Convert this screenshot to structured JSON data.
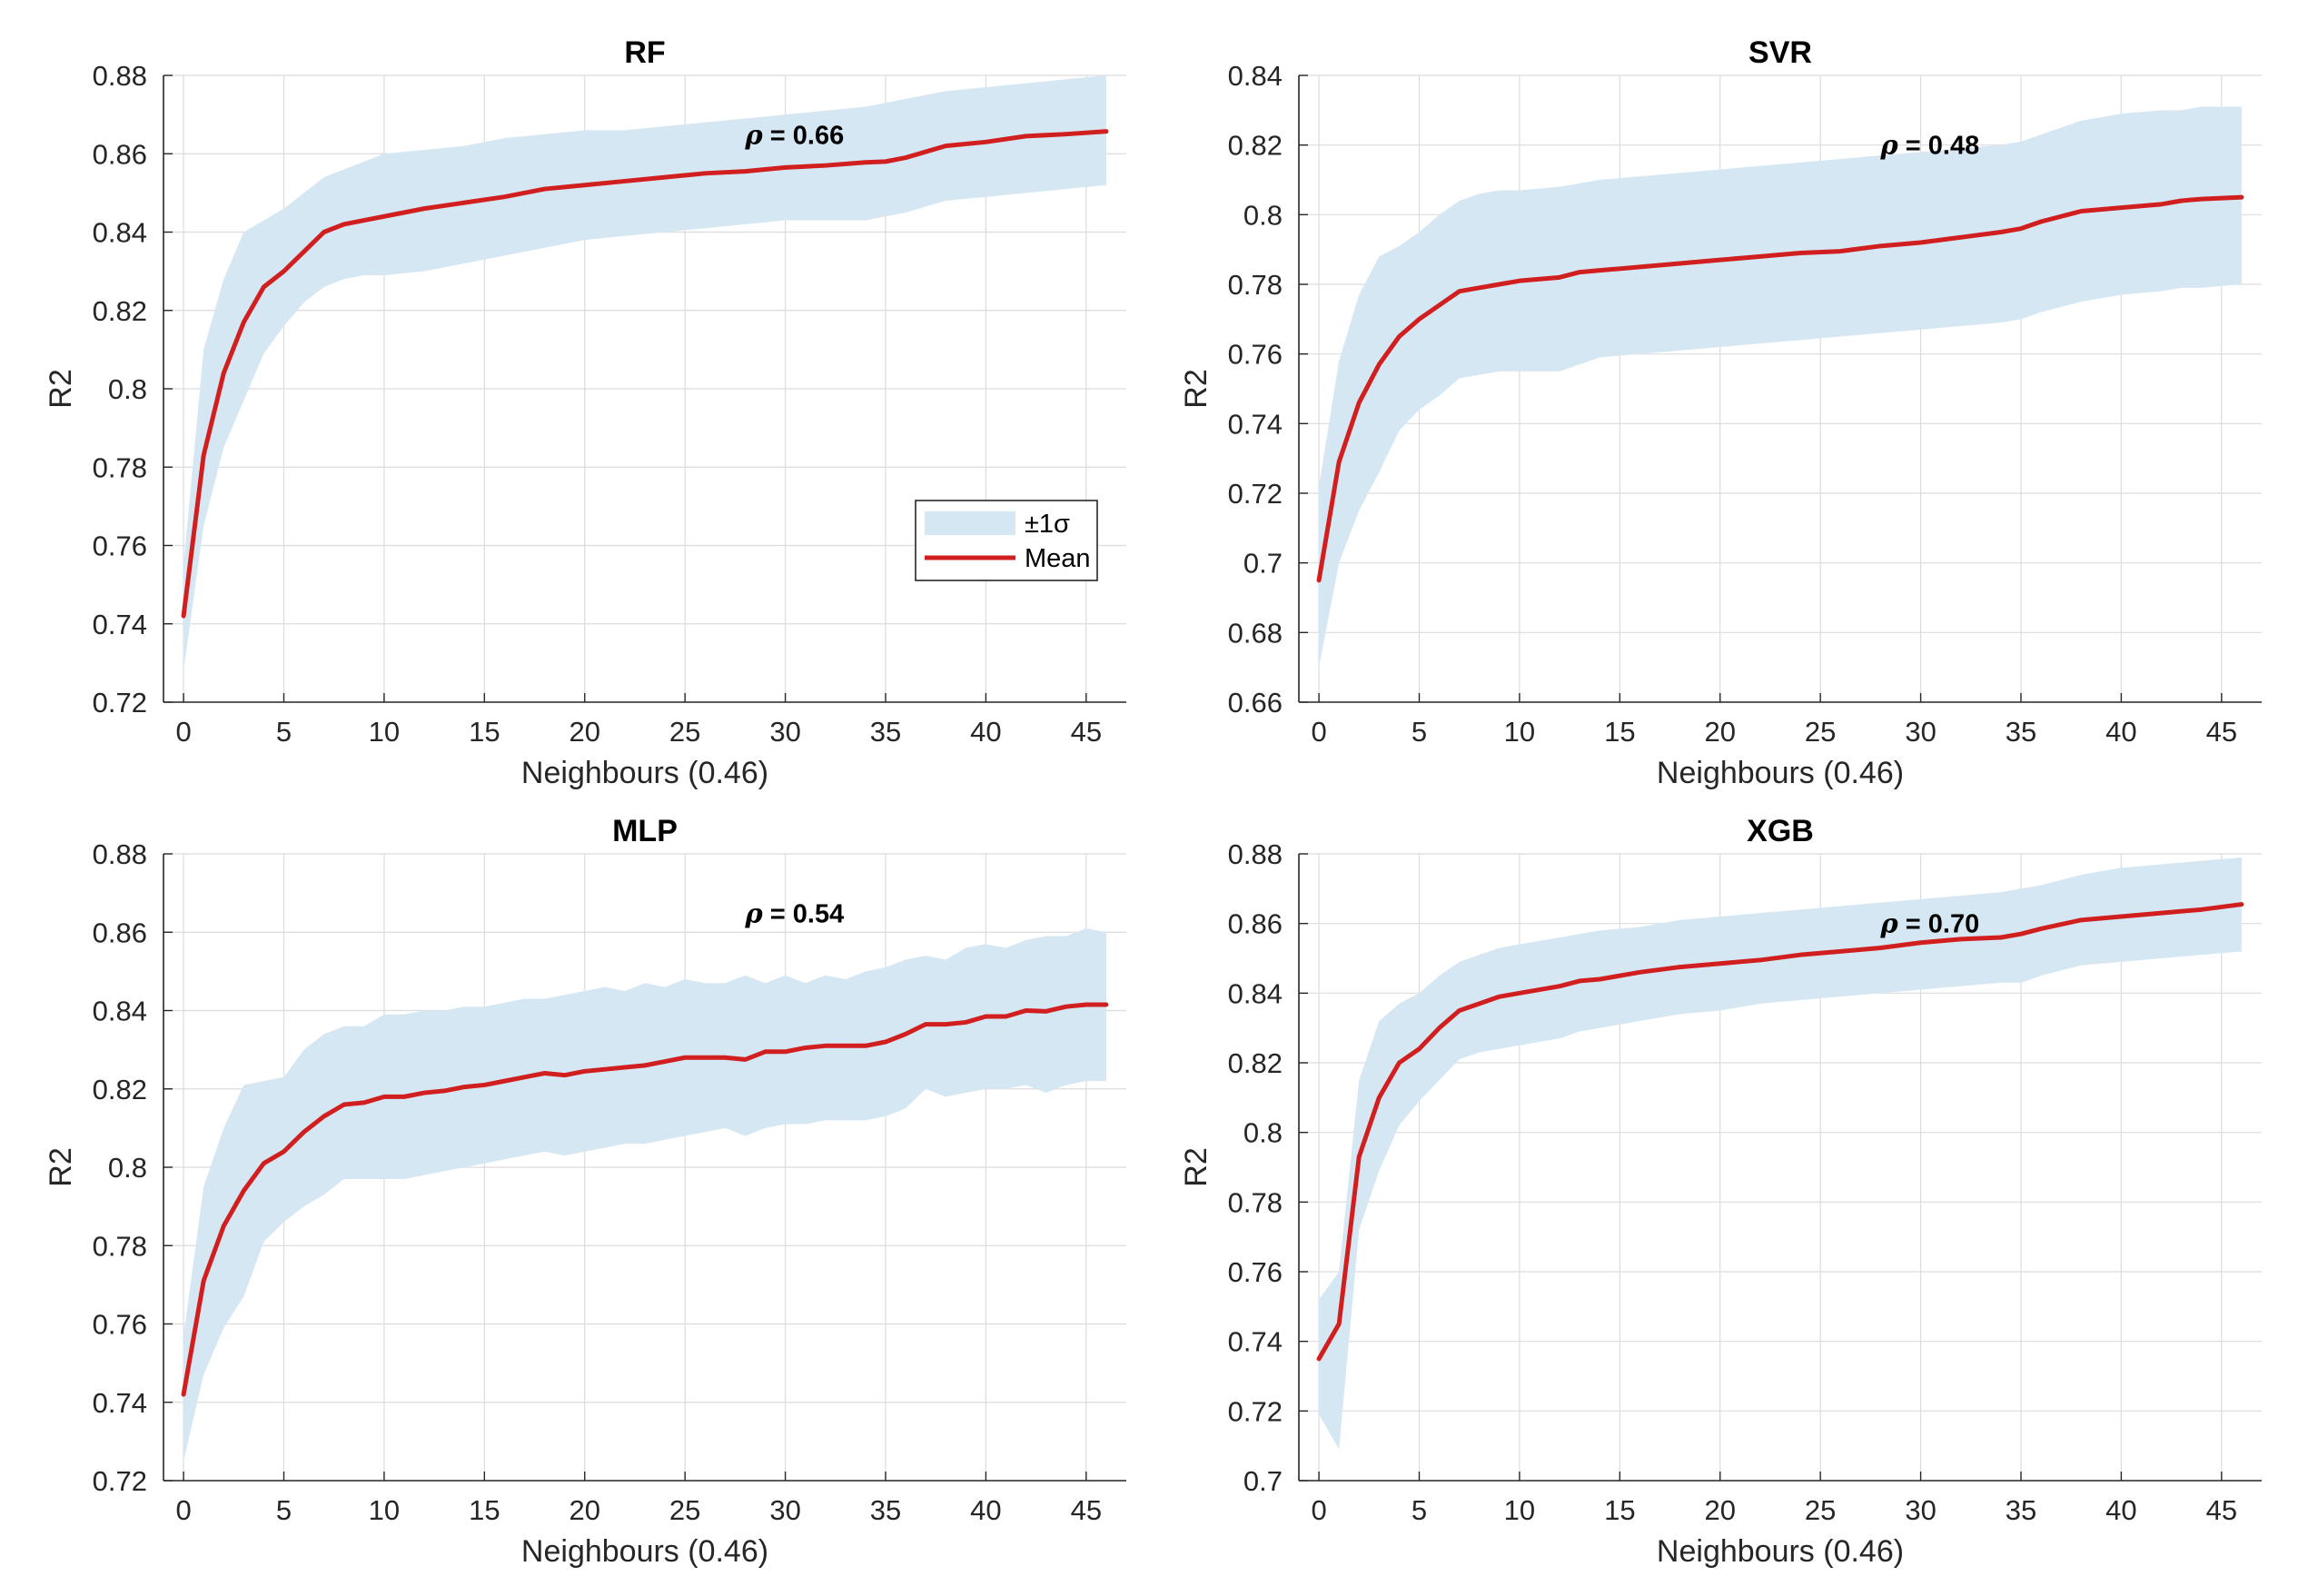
{
  "colors": {
    "band": "#d6e7f4",
    "mean": "#d11f1f",
    "axis": "#262626",
    "grid": "#dcdcdc"
  },
  "legend": {
    "band_label": "±1σ",
    "mean_label": "Mean",
    "location": "lower-right of RF panel"
  },
  "chart_data": [
    {
      "id": "rf",
      "type": "line",
      "title": "RF",
      "xlabel": "Neighbours (0.46)",
      "ylabel": "R2",
      "xlim": [
        -1,
        47
      ],
      "ylim": [
        0.72,
        0.88
      ],
      "xticks": [
        0,
        5,
        10,
        15,
        20,
        25,
        30,
        35,
        40,
        45
      ],
      "xtick_labels": [
        "0",
        "5",
        "10",
        "15",
        "20",
        "25",
        "30",
        "35",
        "40",
        "45"
      ],
      "yticks": [
        0.72,
        0.74,
        0.76,
        0.78,
        0.8,
        0.82,
        0.84,
        0.86,
        0.88
      ],
      "ytick_labels": [
        "0.72",
        "0.74",
        "0.76",
        "0.78",
        "0.8",
        "0.82",
        "0.84",
        "0.86",
        "0.88"
      ],
      "grid": true,
      "annotation": {
        "symbol": "ρ",
        "text": " = 0.66",
        "x": 28,
        "y": 0.8625
      },
      "has_legend": true,
      "x": [
        0,
        1,
        2,
        3,
        4,
        5,
        6,
        7,
        8,
        9,
        10,
        12,
        14,
        16,
        18,
        20,
        22,
        24,
        26,
        28,
        30,
        32,
        34,
        35,
        36,
        38,
        40,
        42,
        44,
        46
      ],
      "series": [
        {
          "name": "Mean",
          "values": [
            0.742,
            0.783,
            0.804,
            0.817,
            0.826,
            0.83,
            0.835,
            0.84,
            0.842,
            0.843,
            0.844,
            0.846,
            0.8475,
            0.849,
            0.851,
            0.852,
            0.853,
            0.854,
            0.855,
            0.8555,
            0.8565,
            0.857,
            0.8578,
            0.858,
            0.859,
            0.862,
            0.863,
            0.8645,
            0.865,
            0.8657
          ]
        },
        {
          "name": "+1σ",
          "values": [
            0.755,
            0.81,
            0.828,
            0.84,
            0.843,
            0.846,
            0.85,
            0.854,
            0.856,
            0.858,
            0.86,
            0.861,
            0.862,
            0.864,
            0.865,
            0.866,
            0.866,
            0.867,
            0.868,
            0.869,
            0.87,
            0.871,
            0.872,
            0.873,
            0.874,
            0.876,
            0.877,
            0.878,
            0.879,
            0.88
          ]
        },
        {
          "name": "-1σ",
          "values": [
            0.728,
            0.765,
            0.785,
            0.797,
            0.809,
            0.816,
            0.822,
            0.826,
            0.828,
            0.829,
            0.829,
            0.83,
            0.832,
            0.834,
            0.836,
            0.838,
            0.839,
            0.84,
            0.841,
            0.842,
            0.843,
            0.843,
            0.843,
            0.844,
            0.845,
            0.848,
            0.849,
            0.85,
            0.851,
            0.852
          ]
        }
      ]
    },
    {
      "id": "svr",
      "type": "line",
      "title": "SVR",
      "xlabel": "Neighbours (0.46)",
      "ylabel": "R2",
      "xlim": [
        -1,
        47
      ],
      "ylim": [
        0.66,
        0.84
      ],
      "xticks": [
        0,
        5,
        10,
        15,
        20,
        25,
        30,
        35,
        40,
        45
      ],
      "xtick_labels": [
        "0",
        "5",
        "10",
        "15",
        "20",
        "25",
        "30",
        "35",
        "40",
        "45"
      ],
      "yticks": [
        0.66,
        0.68,
        0.7,
        0.72,
        0.74,
        0.76,
        0.78,
        0.8,
        0.82,
        0.84
      ],
      "ytick_labels": [
        "0.66",
        "0.68",
        "0.7",
        "0.72",
        "0.74",
        "0.76",
        "0.78",
        "0.8",
        "0.82",
        "0.84"
      ],
      "grid": true,
      "annotation": {
        "symbol": "ρ",
        "text": " = 0.48",
        "x": 28,
        "y": 0.8175
      },
      "has_legend": false,
      "x": [
        0,
        1,
        2,
        3,
        4,
        5,
        6,
        7,
        8,
        9,
        10,
        12,
        13,
        14,
        16,
        18,
        20,
        22,
        24,
        26,
        28,
        30,
        32,
        34,
        35,
        36,
        38,
        40,
        42,
        43,
        44,
        46
      ],
      "series": [
        {
          "name": "Mean",
          "values": [
            0.695,
            0.729,
            0.746,
            0.757,
            0.765,
            0.77,
            0.774,
            0.778,
            0.779,
            0.78,
            0.781,
            0.782,
            0.7835,
            0.784,
            0.785,
            0.786,
            0.787,
            0.788,
            0.789,
            0.7895,
            0.791,
            0.792,
            0.7935,
            0.795,
            0.796,
            0.798,
            0.801,
            0.802,
            0.803,
            0.804,
            0.8045,
            0.805
          ]
        },
        {
          "name": "+1σ",
          "values": [
            0.722,
            0.758,
            0.777,
            0.788,
            0.791,
            0.795,
            0.8,
            0.804,
            0.806,
            0.807,
            0.807,
            0.808,
            0.809,
            0.81,
            0.811,
            0.812,
            0.813,
            0.814,
            0.815,
            0.816,
            0.817,
            0.818,
            0.819,
            0.82,
            0.821,
            0.823,
            0.827,
            0.829,
            0.83,
            0.83,
            0.831,
            0.831
          ]
        },
        {
          "name": "-1σ",
          "values": [
            0.67,
            0.7,
            0.715,
            0.726,
            0.738,
            0.744,
            0.748,
            0.753,
            0.754,
            0.755,
            0.755,
            0.755,
            0.757,
            0.759,
            0.76,
            0.761,
            0.762,
            0.763,
            0.764,
            0.765,
            0.766,
            0.767,
            0.768,
            0.769,
            0.77,
            0.772,
            0.775,
            0.777,
            0.778,
            0.779,
            0.779,
            0.78
          ]
        }
      ]
    },
    {
      "id": "mlp",
      "type": "line",
      "title": "MLP",
      "xlabel": "Neighbours (0.46)",
      "ylabel": "R2",
      "xlim": [
        -1,
        47
      ],
      "ylim": [
        0.72,
        0.88
      ],
      "xticks": [
        0,
        5,
        10,
        15,
        20,
        25,
        30,
        35,
        40,
        45
      ],
      "xtick_labels": [
        "0",
        "5",
        "10",
        "15",
        "20",
        "25",
        "30",
        "35",
        "40",
        "45"
      ],
      "yticks": [
        0.72,
        0.74,
        0.76,
        0.78,
        0.8,
        0.82,
        0.84,
        0.86,
        0.88
      ],
      "ytick_labels": [
        "0.72",
        "0.74",
        "0.76",
        "0.78",
        "0.8",
        "0.82",
        "0.84",
        "0.86",
        "0.88"
      ],
      "grid": true,
      "annotation": {
        "symbol": "ρ",
        "text": " = 0.54",
        "x": 28,
        "y": 0.8625
      },
      "has_legend": false,
      "x": [
        0,
        1,
        2,
        3,
        4,
        5,
        6,
        7,
        8,
        9,
        10,
        11,
        12,
        13,
        14,
        15,
        16,
        17,
        18,
        19,
        20,
        21,
        22,
        23,
        24,
        25,
        26,
        27,
        28,
        29,
        30,
        31,
        32,
        33,
        34,
        35,
        36,
        37,
        38,
        39,
        40,
        41,
        42,
        43,
        44,
        45,
        46
      ],
      "series": [
        {
          "name": "Mean",
          "values": [
            0.742,
            0.771,
            0.785,
            0.794,
            0.801,
            0.804,
            0.809,
            0.813,
            0.816,
            0.8165,
            0.818,
            0.818,
            0.819,
            0.8195,
            0.8205,
            0.821,
            0.822,
            0.823,
            0.824,
            0.8235,
            0.8245,
            0.825,
            0.8255,
            0.826,
            0.827,
            0.828,
            0.828,
            0.828,
            0.8275,
            0.8295,
            0.8295,
            0.8305,
            0.831,
            0.831,
            0.831,
            0.832,
            0.834,
            0.8365,
            0.8365,
            0.837,
            0.8385,
            0.8385,
            0.84,
            0.8398,
            0.841,
            0.8415,
            0.8415
          ]
        },
        {
          "name": "+1σ",
          "values": [
            0.757,
            0.795,
            0.81,
            0.821,
            0.822,
            0.823,
            0.83,
            0.834,
            0.836,
            0.836,
            0.839,
            0.839,
            0.84,
            0.84,
            0.841,
            0.841,
            0.842,
            0.843,
            0.843,
            0.844,
            0.845,
            0.846,
            0.845,
            0.847,
            0.846,
            0.848,
            0.847,
            0.847,
            0.849,
            0.847,
            0.849,
            0.847,
            0.849,
            0.848,
            0.85,
            0.851,
            0.853,
            0.854,
            0.853,
            0.856,
            0.857,
            0.856,
            0.858,
            0.859,
            0.859,
            0.861,
            0.86
          ]
        },
        {
          "name": "-1σ",
          "values": [
            0.725,
            0.747,
            0.759,
            0.767,
            0.781,
            0.786,
            0.79,
            0.793,
            0.797,
            0.797,
            0.797,
            0.797,
            0.798,
            0.799,
            0.8,
            0.801,
            0.802,
            0.803,
            0.804,
            0.803,
            0.804,
            0.805,
            0.806,
            0.806,
            0.807,
            0.808,
            0.809,
            0.81,
            0.808,
            0.81,
            0.811,
            0.811,
            0.812,
            0.812,
            0.812,
            0.813,
            0.815,
            0.82,
            0.818,
            0.819,
            0.82,
            0.82,
            0.821,
            0.819,
            0.821,
            0.822,
            0.822
          ]
        }
      ]
    },
    {
      "id": "xgb",
      "type": "line",
      "title": "XGB",
      "xlabel": "Neighbours (0.46)",
      "ylabel": "R2",
      "xlim": [
        -1,
        47
      ],
      "ylim": [
        0.7,
        0.88
      ],
      "xticks": [
        0,
        5,
        10,
        15,
        20,
        25,
        30,
        35,
        40,
        45
      ],
      "xtick_labels": [
        "0",
        "5",
        "10",
        "15",
        "20",
        "25",
        "30",
        "35",
        "40",
        "45"
      ],
      "yticks": [
        0.7,
        0.72,
        0.74,
        0.76,
        0.78,
        0.8,
        0.82,
        0.84,
        0.86,
        0.88
      ],
      "ytick_labels": [
        "0.7",
        "0.72",
        "0.74",
        "0.76",
        "0.78",
        "0.8",
        "0.82",
        "0.84",
        "0.86",
        "0.88"
      ],
      "grid": true,
      "annotation": {
        "symbol": "ρ",
        "text": " = 0.70",
        "x": 28,
        "y": 0.8575
      },
      "has_legend": false,
      "x": [
        0,
        1,
        2,
        3,
        4,
        5,
        6,
        7,
        8,
        9,
        10,
        12,
        13,
        14,
        16,
        18,
        20,
        22,
        24,
        26,
        28,
        30,
        32,
        34,
        35,
        36,
        38,
        40,
        42,
        44,
        46
      ],
      "series": [
        {
          "name": "Mean",
          "values": [
            0.735,
            0.745,
            0.793,
            0.81,
            0.82,
            0.824,
            0.83,
            0.835,
            0.837,
            0.839,
            0.84,
            0.842,
            0.8435,
            0.844,
            0.846,
            0.8475,
            0.8485,
            0.8495,
            0.851,
            0.852,
            0.853,
            0.8545,
            0.8555,
            0.856,
            0.857,
            0.8585,
            0.861,
            0.862,
            0.863,
            0.864,
            0.8655
          ]
        },
        {
          "name": "+1σ",
          "values": [
            0.752,
            0.76,
            0.815,
            0.832,
            0.837,
            0.84,
            0.845,
            0.849,
            0.851,
            0.853,
            0.854,
            0.856,
            0.857,
            0.858,
            0.859,
            0.861,
            0.862,
            0.863,
            0.864,
            0.865,
            0.866,
            0.867,
            0.868,
            0.869,
            0.87,
            0.871,
            0.874,
            0.876,
            0.877,
            0.878,
            0.879
          ]
        },
        {
          "name": "-1σ",
          "values": [
            0.719,
            0.709,
            0.772,
            0.789,
            0.802,
            0.809,
            0.815,
            0.821,
            0.823,
            0.824,
            0.825,
            0.827,
            0.829,
            0.83,
            0.832,
            0.834,
            0.835,
            0.837,
            0.838,
            0.839,
            0.84,
            0.841,
            0.842,
            0.843,
            0.843,
            0.845,
            0.848,
            0.849,
            0.85,
            0.851,
            0.852
          ]
        }
      ]
    }
  ]
}
